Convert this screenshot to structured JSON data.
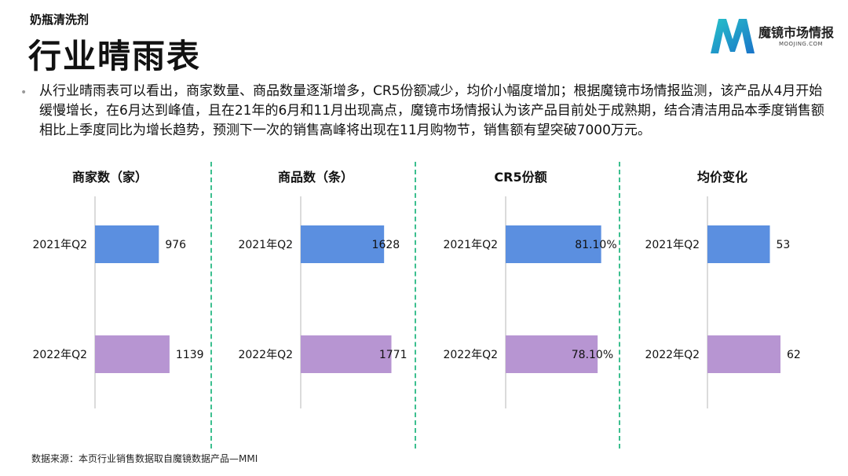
{
  "header": {
    "subtitle": "奶瓶清洗剂",
    "title": "行业晴雨表"
  },
  "logo": {
    "name": "魔镜市场情报",
    "domain": "MOOJING.COM",
    "icon": "moojing-m-logo"
  },
  "summary": "从行业晴雨表可以看出，商家数量、商品数量逐渐增多，CR5份额减少，均价小幅度增加；根据魔镜市场情报监测，该产品从4月开始缓慢增长，在6月达到峰值，且在21年的6月和11月出现高点，魔镜市场情报认为该产品目前处于成熟期，结合清洁用品本季度销售额相比上季度同比为增长趋势，预测下一次的销售高峰将出现在11月购物节，销售额有望突破7000万元。",
  "colors": {
    "2021": "#5b8fe0",
    "2022": "#b795d2",
    "divider": "#3cbf8f"
  },
  "chart_data": [
    {
      "type": "bar",
      "orientation": "horizontal",
      "title": "商家数（家）",
      "categories": [
        "2021年Q2",
        "2022年Q2"
      ],
      "values": [
        976,
        1139
      ],
      "labels": [
        "976",
        "1139"
      ],
      "xlim": [
        0,
        1800
      ]
    },
    {
      "type": "bar",
      "orientation": "horizontal",
      "title": "商品数（条）",
      "categories": [
        "2021年Q2",
        "2022年Q2"
      ],
      "values": [
        1628,
        1771
      ],
      "labels": [
        "1628",
        "1771"
      ],
      "xlim": [
        0,
        2300
      ]
    },
    {
      "type": "bar",
      "orientation": "horizontal",
      "title": "CR5份额",
      "categories": [
        "2021年Q2",
        "2022年Q2"
      ],
      "values": [
        81.1,
        78.1
      ],
      "labels": [
        "81.10%",
        "78.10%"
      ],
      "xlim": [
        0,
        100
      ]
    },
    {
      "type": "bar",
      "orientation": "horizontal",
      "title": "均价变化",
      "categories": [
        "2021年Q2",
        "2022年Q2"
      ],
      "values": [
        53,
        62
      ],
      "labels": [
        "53",
        "62"
      ],
      "xlim": [
        0,
        100
      ]
    }
  ],
  "footer": {
    "source": "数据来源：本页行业销售数据取自魔镜数据产品—MMI"
  }
}
